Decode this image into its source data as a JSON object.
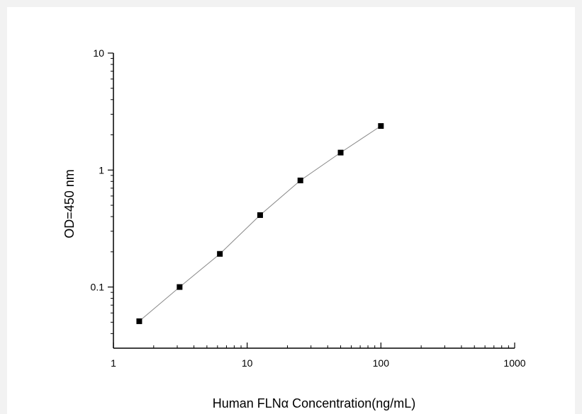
{
  "chart_data": {
    "type": "scatter",
    "title": "",
    "xlabel": "Human FLNα  Concentration(ng/mL)",
    "ylabel": "OD=450 nm",
    "x_scale": "log",
    "y_scale": "log",
    "xlim": [
      1,
      1000
    ],
    "ylim": [
      0.03,
      10
    ],
    "x_ticks": [
      {
        "value": 1,
        "label": "1"
      },
      {
        "value": 10,
        "label": "10"
      },
      {
        "value": 100,
        "label": "100"
      },
      {
        "value": 1000,
        "label": "1000"
      }
    ],
    "y_ticks": [
      {
        "value": 0.1,
        "label": "0.1"
      },
      {
        "value": 1,
        "label": "1"
      },
      {
        "value": 10,
        "label": "10"
      }
    ],
    "grid": false,
    "legend": "none",
    "series": [
      {
        "marker": "square",
        "line": true,
        "color": "#000000",
        "line_color": "#888888",
        "points": [
          {
            "x": 1.56,
            "y": 0.051
          },
          {
            "x": 3.125,
            "y": 0.1
          },
          {
            "x": 6.25,
            "y": 0.192
          },
          {
            "x": 12.5,
            "y": 0.412
          },
          {
            "x": 25,
            "y": 0.815
          },
          {
            "x": 50,
            "y": 1.41
          },
          {
            "x": 100,
            "y": 2.38
          }
        ]
      }
    ]
  }
}
